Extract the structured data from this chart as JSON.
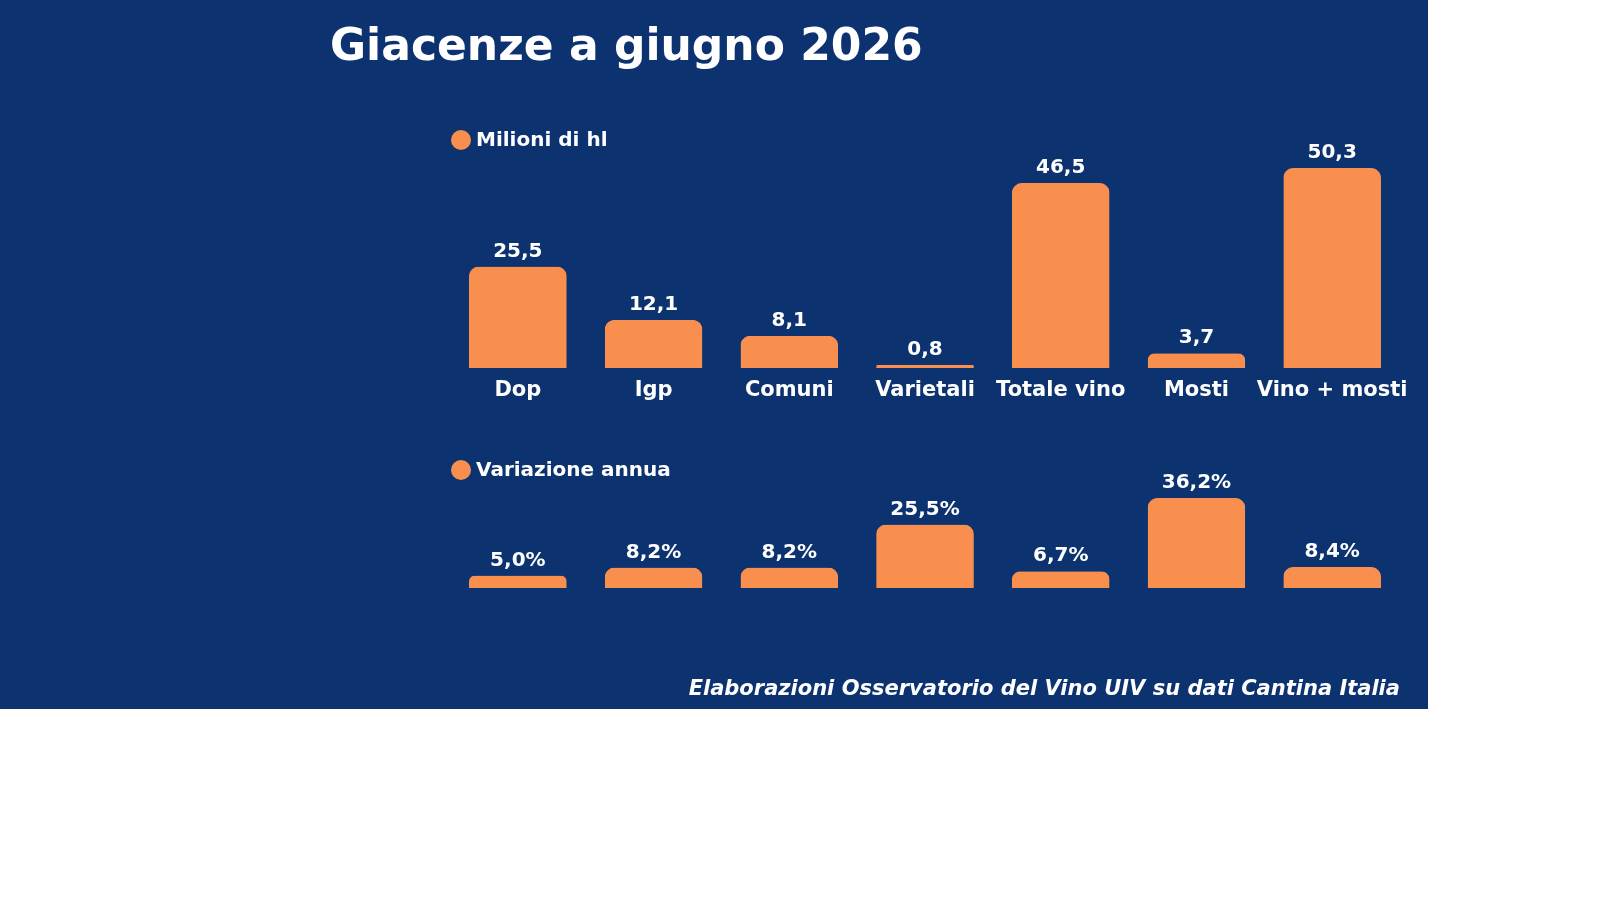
{
  "chart_data": [
    {
      "type": "bar",
      "title": "Giacenze a giugno 2026",
      "categories": [
        "Dop",
        "Igp",
        "Comuni",
        "Varietali",
        "Totale vino",
        "Mosti",
        "Vino + mosti"
      ],
      "series": [
        {
          "name": "Milioni di hl",
          "color": "#f98f4f",
          "values": [
            25.5,
            12.1,
            8.1,
            0.8,
            46.5,
            3.7,
            50.3
          ],
          "value_labels": [
            "25,5",
            "12,1",
            "8,1",
            "0,8",
            "46,5",
            "3,7",
            "50,3"
          ]
        }
      ],
      "legend": "top"
    },
    {
      "type": "bar",
      "categories": [
        null,
        null,
        null,
        null,
        null,
        null,
        null
      ],
      "series": [
        {
          "name": "Variazione annua",
          "color": "#f98f4f",
          "values": [
            5.0,
            8.2,
            8.2,
            25.5,
            6.7,
            36.2,
            8.4
          ],
          "value_labels": [
            "5,0%",
            "8,2%",
            "8,2%",
            "25,5%",
            "6,7%",
            "36,2%",
            "8,4%"
          ]
        }
      ],
      "legend": "top",
      "annotations": [
        "Elaborazioni Osservatorio del Vino UIV su dati Cantina Italia"
      ]
    }
  ]
}
